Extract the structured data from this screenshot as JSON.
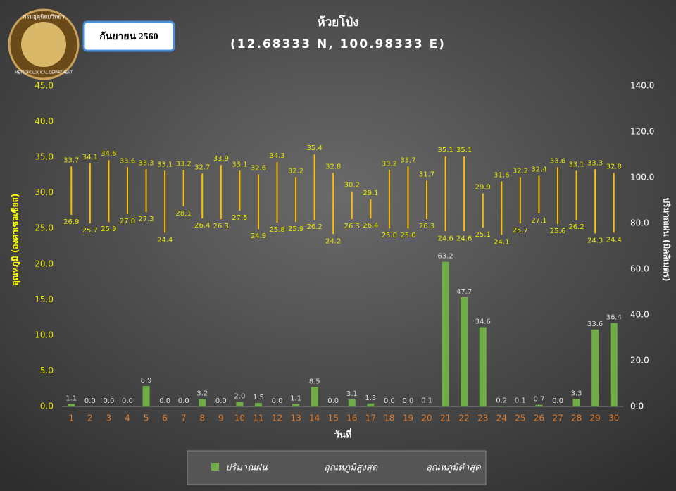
{
  "logo": {
    "text_th": "กรมอุตุนิยมวิทยา",
    "text_en": "METEOROLOGICAL DEPARTMENT"
  },
  "badge": "กันยายน 2560",
  "chart_data": {
    "type": "combo",
    "title": "ห้วยโป่ง",
    "subtitle": "(12.68333 N, 100.98333 E)",
    "y_label": "อุณหภูมิ (องศาเซลเซียส)",
    "y2_label": "ปริมาณฝน (มิลลิเมตร)",
    "x_label": "วันที่",
    "categories": [
      "1",
      "2",
      "3",
      "4",
      "5",
      "6",
      "7",
      "8",
      "9",
      "10",
      "11",
      "12",
      "13",
      "14",
      "15",
      "16",
      "17",
      "18",
      "19",
      "20",
      "21",
      "22",
      "23",
      "24",
      "25",
      "26",
      "27",
      "28",
      "29",
      "30"
    ],
    "ylim": [
      0,
      45
    ],
    "yticks": [
      {
        "value": 0,
        "label": "0.0"
      },
      {
        "value": 5,
        "label": "5.0"
      },
      {
        "value": 10,
        "label": "10.0"
      },
      {
        "value": 15,
        "label": "15.0"
      },
      {
        "value": 20,
        "label": "20.0"
      },
      {
        "value": 25,
        "label": "25.0"
      },
      {
        "value": 30,
        "label": "30.0"
      },
      {
        "value": 35,
        "label": "35.0"
      },
      {
        "value": 40,
        "label": "40.0"
      },
      {
        "value": 45,
        "label": "45.0"
      }
    ],
    "y2lim": [
      0,
      140
    ],
    "y2ticks": [
      {
        "value": 0,
        "label": "0.0"
      },
      {
        "value": 20,
        "label": "20.0"
      },
      {
        "value": 40,
        "label": "40.0"
      },
      {
        "value": 60,
        "label": "60.0"
      },
      {
        "value": 80,
        "label": "80.0"
      },
      {
        "value": 100,
        "label": "100.0"
      },
      {
        "value": 120,
        "label": "120.0"
      },
      {
        "value": 140,
        "label": "140.0"
      }
    ],
    "series": [
      {
        "name": "ปริมาณฝน",
        "type": "bar",
        "axis": "y2",
        "color": "#70ad47",
        "values": [
          1.1,
          0,
          0,
          0,
          8.9,
          0,
          0,
          3.2,
          0,
          2.0,
          1.5,
          0,
          1.1,
          8.5,
          0,
          3.1,
          1.3,
          0,
          0,
          0.1,
          63.2,
          47.7,
          34.6,
          0.2,
          0.1,
          0.7,
          0,
          3.3,
          33.6,
          36.4
        ],
        "value_labels": [
          "1.1",
          "0.0",
          "0.0",
          "0.0",
          "8.9",
          "0.0",
          "0.0",
          "3.2",
          "0.0",
          "2.0",
          "1.5",
          "0.0",
          "1.1",
          "8.5",
          "0.0",
          "3.1",
          "1.3",
          "0.0",
          "0.0",
          "0.1",
          "63.2",
          "47.7",
          "34.6",
          "0.2",
          "0.1",
          "0.7",
          "0.0",
          "3.3",
          "33.6",
          "36.4"
        ]
      },
      {
        "name": "อุณหภูมิสูงสุด",
        "type": "high",
        "color": "#ffc000",
        "values": [
          33.7,
          34.1,
          34.6,
          33.6,
          33.3,
          33.1,
          33.2,
          32.7,
          33.9,
          33.1,
          32.6,
          34.3,
          32.2,
          35.4,
          32.8,
          30.2,
          29.1,
          33.2,
          33.7,
          31.7,
          35.1,
          35.1,
          29.9,
          31.6,
          32.2,
          32.4,
          33.6,
          33.1,
          33.3,
          32.8
        ],
        "value_labels": [
          "33.7",
          "34.1",
          "34.6",
          "33.6",
          "33.3",
          "33.1",
          "33.2",
          "32.7",
          "33.9",
          "33.1",
          "32.6",
          "34.3",
          "32.2",
          "35.4",
          "32.8",
          "30.2",
          "29.1",
          "33.2",
          "33.7",
          "31.7",
          "35.1",
          "35.1",
          "29.9",
          "31.6",
          "32.2",
          "32.4",
          "33.6",
          "33.1",
          "33.3",
          "32.8"
        ]
      },
      {
        "name": "อุณหภูมิต่ำสุด",
        "type": "low",
        "color": "#ffc000",
        "values": [
          26.9,
          25.7,
          25.9,
          27.0,
          27.3,
          24.4,
          28.1,
          26.4,
          26.3,
          27.5,
          24.9,
          25.8,
          25.9,
          26.2,
          24.2,
          26.3,
          26.4,
          25.0,
          25.0,
          26.3,
          24.6,
          24.6,
          25.1,
          24.1,
          25.7,
          27.1,
          25.6,
          26.2,
          24.3,
          24.4
        ],
        "value_labels": [
          "26.9",
          "25.7",
          "25.9",
          "27.0",
          "27.3",
          "24.4",
          "28.1",
          "26.4",
          "26.3",
          "27.5",
          "24.9",
          "25.8",
          "25.9",
          "26.2",
          "24.2",
          "26.3",
          "26.4",
          "25.0",
          "25.0",
          "26.3",
          "24.6",
          "24.6",
          "25.1",
          "24.1",
          "25.7",
          "27.1",
          "25.6",
          "26.2",
          "24.3",
          "24.4"
        ]
      }
    ]
  }
}
